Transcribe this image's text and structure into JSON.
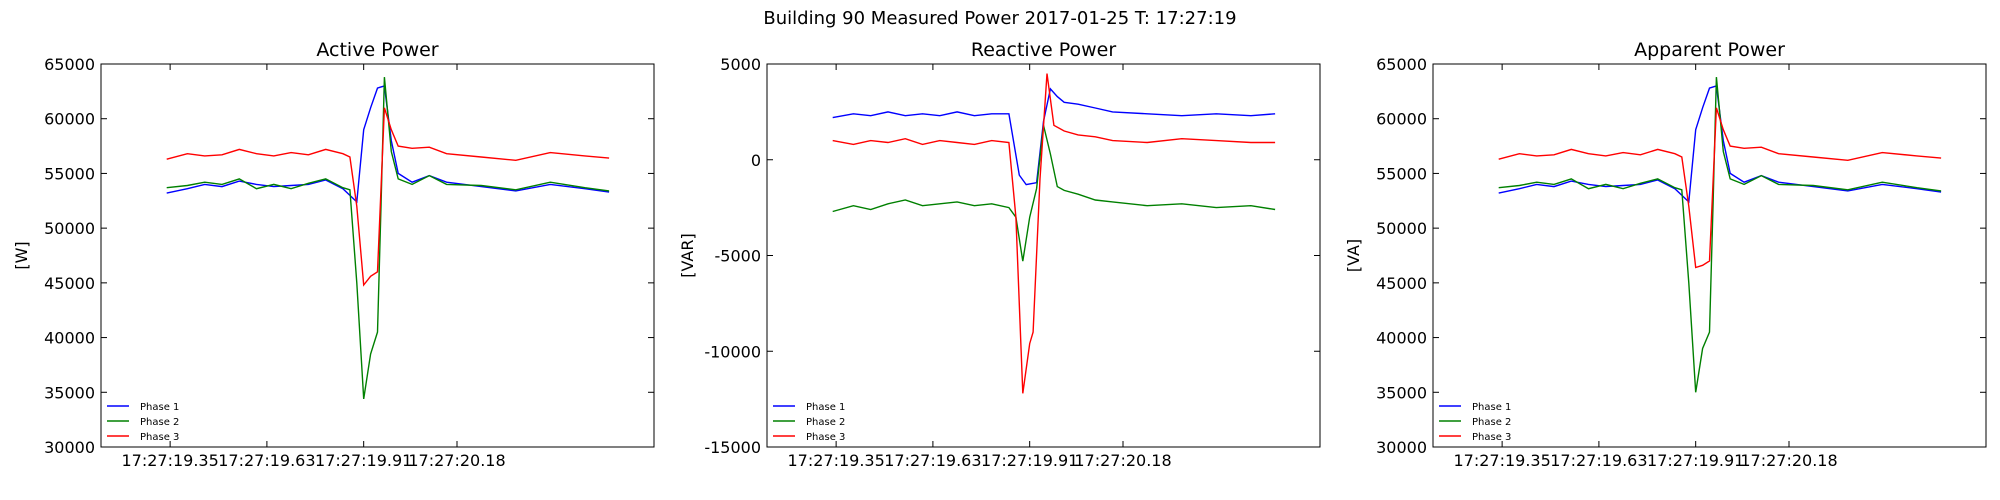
{
  "figure": {
    "suptitle": "Building 90 Measured Power 2017-01-25 T: 17:27:19"
  },
  "series_colors": {
    "Phase 1": "#0000ff",
    "Phase 2": "#008000",
    "Phase 3": "#ff0000"
  },
  "chart_data": [
    {
      "type": "line",
      "title": "Active Power",
      "ylabel": "[W]",
      "ylim": [
        30000,
        65000
      ],
      "yticks": [
        30000,
        35000,
        40000,
        45000,
        50000,
        55000,
        60000,
        65000
      ],
      "xlim": [
        -0.2,
        1.4
      ],
      "xticks": [
        0.0,
        0.28,
        0.56,
        0.83
      ],
      "xticklabels": [
        "17:27:19.35",
        "17:27:19.63",
        "17:27:19.91",
        "17:27:20.18"
      ],
      "legend_loc": "lower-left",
      "series": [
        {
          "name": "Phase 1",
          "x": [
            -0.01,
            0.05,
            0.1,
            0.15,
            0.2,
            0.25,
            0.3,
            0.35,
            0.4,
            0.45,
            0.5,
            0.54,
            0.56,
            0.58,
            0.6,
            0.62,
            0.64,
            0.66,
            0.7,
            0.75,
            0.8,
            0.9,
            1.0,
            1.1,
            1.2,
            1.27
          ],
          "y": [
            53200,
            53600,
            54000,
            53800,
            54300,
            54000,
            53800,
            53900,
            54000,
            54400,
            53600,
            52400,
            59000,
            61000,
            62800,
            63000,
            58000,
            55000,
            54200,
            54800,
            54200,
            53800,
            53400,
            54000,
            53600,
            53300
          ]
        },
        {
          "name": "Phase 2",
          "x": [
            -0.01,
            0.05,
            0.1,
            0.15,
            0.2,
            0.25,
            0.3,
            0.35,
            0.4,
            0.45,
            0.5,
            0.52,
            0.54,
            0.56,
            0.58,
            0.6,
            0.61,
            0.62,
            0.64,
            0.66,
            0.7,
            0.75,
            0.8,
            0.9,
            1.0,
            1.1,
            1.2,
            1.27
          ],
          "y": [
            53700,
            53900,
            54200,
            54000,
            54500,
            53600,
            54000,
            53600,
            54100,
            54500,
            53700,
            53500,
            45000,
            34400,
            38500,
            40500,
            52000,
            63800,
            57000,
            54500,
            54000,
            54800,
            54000,
            53900,
            53500,
            54200,
            53700,
            53400
          ]
        },
        {
          "name": "Phase 3",
          "x": [
            -0.01,
            0.05,
            0.1,
            0.15,
            0.2,
            0.25,
            0.3,
            0.35,
            0.4,
            0.45,
            0.5,
            0.52,
            0.54,
            0.56,
            0.58,
            0.6,
            0.62,
            0.64,
            0.66,
            0.7,
            0.75,
            0.8,
            0.9,
            1.0,
            1.1,
            1.2,
            1.27
          ],
          "y": [
            56300,
            56800,
            56600,
            56700,
            57200,
            56800,
            56600,
            56900,
            56700,
            57200,
            56800,
            56500,
            52000,
            44800,
            45600,
            46000,
            61000,
            59000,
            57500,
            57300,
            57400,
            56800,
            56500,
            56200,
            56900,
            56600,
            56400
          ]
        }
      ]
    },
    {
      "type": "line",
      "title": "Reactive Power",
      "ylabel": "[VAR]",
      "ylim": [
        -15000,
        5000
      ],
      "yticks": [
        -15000,
        -10000,
        -5000,
        0,
        5000
      ],
      "xlim": [
        -0.2,
        1.4
      ],
      "xticks": [
        0.0,
        0.28,
        0.56,
        0.83
      ],
      "xticklabels": [
        "17:27:19.35",
        "17:27:19.63",
        "17:27:19.91",
        "17:27:20.18"
      ],
      "legend_loc": "lower-left",
      "series": [
        {
          "name": "Phase 1",
          "x": [
            -0.01,
            0.05,
            0.1,
            0.15,
            0.2,
            0.25,
            0.3,
            0.35,
            0.4,
            0.45,
            0.5,
            0.53,
            0.55,
            0.58,
            0.6,
            0.62,
            0.64,
            0.66,
            0.7,
            0.75,
            0.8,
            0.9,
            1.0,
            1.1,
            1.2,
            1.27
          ],
          "y": [
            2200,
            2400,
            2300,
            2500,
            2300,
            2400,
            2300,
            2500,
            2300,
            2400,
            2400,
            -800,
            -1300,
            -1200,
            2000,
            3700,
            3300,
            3000,
            2900,
            2700,
            2500,
            2400,
            2300,
            2400,
            2300,
            2400
          ]
        },
        {
          "name": "Phase 2",
          "x": [
            -0.01,
            0.05,
            0.1,
            0.15,
            0.2,
            0.25,
            0.3,
            0.35,
            0.4,
            0.45,
            0.5,
            0.52,
            0.54,
            0.56,
            0.58,
            0.6,
            0.62,
            0.64,
            0.66,
            0.7,
            0.75,
            0.8,
            0.9,
            1.0,
            1.1,
            1.2,
            1.27
          ],
          "y": [
            -2700,
            -2400,
            -2600,
            -2300,
            -2100,
            -2400,
            -2300,
            -2200,
            -2400,
            -2300,
            -2500,
            -3000,
            -5300,
            -3000,
            -1500,
            1800,
            300,
            -1400,
            -1600,
            -1800,
            -2100,
            -2200,
            -2400,
            -2300,
            -2500,
            -2400,
            -2600
          ]
        },
        {
          "name": "Phase 3",
          "x": [
            -0.01,
            0.05,
            0.1,
            0.15,
            0.2,
            0.25,
            0.3,
            0.35,
            0.4,
            0.45,
            0.5,
            0.52,
            0.54,
            0.56,
            0.57,
            0.59,
            0.61,
            0.63,
            0.66,
            0.7,
            0.75,
            0.8,
            0.9,
            1.0,
            1.1,
            1.2,
            1.27
          ],
          "y": [
            1000,
            800,
            1000,
            900,
            1100,
            800,
            1000,
            900,
            800,
            1000,
            900,
            -3000,
            -12200,
            -9600,
            -9000,
            -1000,
            4500,
            1800,
            1500,
            1300,
            1200,
            1000,
            900,
            1100,
            1000,
            900,
            900
          ]
        }
      ]
    },
    {
      "type": "line",
      "title": "Apparent Power",
      "ylabel": "[VA]",
      "ylim": [
        30000,
        65000
      ],
      "yticks": [
        30000,
        35000,
        40000,
        45000,
        50000,
        55000,
        60000,
        65000
      ],
      "xlim": [
        -0.2,
        1.4
      ],
      "xticks": [
        0.0,
        0.28,
        0.56,
        0.83
      ],
      "xticklabels": [
        "17:27:19.35",
        "17:27:19.63",
        "17:27:19.91",
        "17:27:20.18"
      ],
      "legend_loc": "lower-left",
      "series": [
        {
          "name": "Phase 1",
          "x": [
            -0.01,
            0.05,
            0.1,
            0.15,
            0.2,
            0.25,
            0.3,
            0.35,
            0.4,
            0.45,
            0.5,
            0.54,
            0.56,
            0.58,
            0.6,
            0.62,
            0.64,
            0.66,
            0.7,
            0.75,
            0.8,
            0.9,
            1.0,
            1.1,
            1.2,
            1.27
          ],
          "y": [
            53200,
            53600,
            54000,
            53800,
            54300,
            54000,
            53800,
            53900,
            54000,
            54400,
            53600,
            52400,
            59000,
            61000,
            62800,
            63000,
            58000,
            55000,
            54200,
            54800,
            54200,
            53800,
            53400,
            54000,
            53600,
            53300
          ]
        },
        {
          "name": "Phase 2",
          "x": [
            -0.01,
            0.05,
            0.1,
            0.15,
            0.2,
            0.25,
            0.3,
            0.35,
            0.4,
            0.45,
            0.5,
            0.52,
            0.54,
            0.56,
            0.58,
            0.6,
            0.61,
            0.62,
            0.64,
            0.66,
            0.7,
            0.75,
            0.8,
            0.9,
            1.0,
            1.1,
            1.2,
            1.27
          ],
          "y": [
            53700,
            53900,
            54200,
            54000,
            54500,
            53600,
            54000,
            53600,
            54100,
            54500,
            53700,
            53500,
            45000,
            35000,
            39000,
            40500,
            52000,
            63800,
            57000,
            54500,
            54000,
            54800,
            54000,
            53900,
            53500,
            54200,
            53700,
            53400
          ]
        },
        {
          "name": "Phase 3",
          "x": [
            -0.01,
            0.05,
            0.1,
            0.15,
            0.2,
            0.25,
            0.3,
            0.35,
            0.4,
            0.45,
            0.5,
            0.52,
            0.54,
            0.56,
            0.58,
            0.6,
            0.62,
            0.64,
            0.66,
            0.7,
            0.75,
            0.8,
            0.9,
            1.0,
            1.1,
            1.2,
            1.27
          ],
          "y": [
            56300,
            56800,
            56600,
            56700,
            57200,
            56800,
            56600,
            56900,
            56700,
            57200,
            56800,
            56500,
            52000,
            46400,
            46600,
            47000,
            61000,
            59000,
            57500,
            57300,
            57400,
            56800,
            56500,
            56200,
            56900,
            56600,
            56400
          ]
        }
      ]
    }
  ]
}
